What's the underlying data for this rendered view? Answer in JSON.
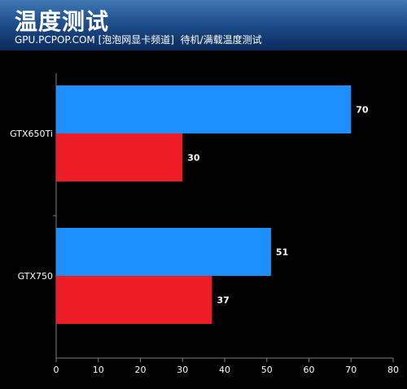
{
  "header": {
    "title": "温度测试",
    "subtitle": "GPU.PCPOP.COM [泡泡网显卡频道]  待机/满载温度测试"
  },
  "colors": {
    "header_top": "#3f78b4",
    "header_bottom": "#0b2a5c",
    "idle_bar": "#1e8fff",
    "load_bar": "#ee1c25",
    "background": "#000000",
    "axis": "#808080",
    "text": "#ffffff"
  },
  "chart_data": {
    "type": "bar",
    "orientation": "horizontal",
    "title": "温度测试",
    "categories": [
      "GTX650Ti",
      "GTX750"
    ],
    "series": [
      {
        "values": [
          70,
          51
        ],
        "color": "#1e8fff"
      },
      {
        "values": [
          30,
          37
        ],
        "color": "#ee1c25"
      }
    ],
    "xlim": [
      0,
      80
    ],
    "xticks": [
      0,
      10,
      20,
      30,
      40,
      50,
      60,
      70,
      80
    ],
    "grid": false,
    "legend": "none",
    "data_labels": true
  }
}
